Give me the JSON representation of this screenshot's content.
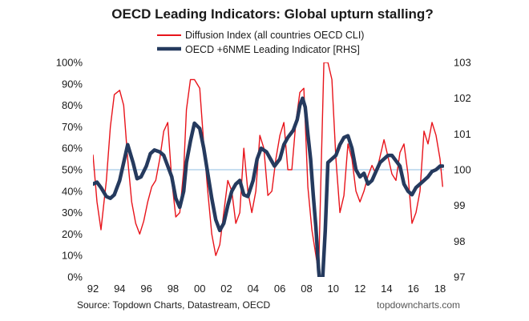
{
  "chart_data": {
    "type": "line",
    "title": "OECD Leading Indicators: Global upturn stalling?",
    "source": "Source: Topdown Charts, Datastream, OECD",
    "brand": "topdowncharts.com",
    "x_tick_labels": [
      "92",
      "94",
      "96",
      "98",
      "00",
      "02",
      "04",
      "06",
      "08",
      "10",
      "12",
      "14",
      "16",
      "18"
    ],
    "x_range": [
      1992,
      2018.3
    ],
    "left_axis": {
      "range": [
        0,
        100
      ],
      "tick_labels": [
        "0%",
        "10%",
        "20%",
        "30%",
        "40%",
        "50%",
        "60%",
        "70%",
        "80%",
        "90%",
        "100%"
      ],
      "tick_values": [
        0,
        10,
        20,
        30,
        40,
        50,
        60,
        70,
        80,
        90,
        100
      ]
    },
    "right_axis": {
      "range": [
        97,
        103
      ],
      "tick_labels": [
        "97",
        "98",
        "99",
        "100",
        "101",
        "102",
        "103"
      ],
      "tick_values": [
        97,
        98,
        99,
        100,
        101,
        102,
        103
      ]
    },
    "reference_line": {
      "axis": "left",
      "value": 50
    },
    "series": [
      {
        "name": "Diffusion Index (all countries OECD CLI)",
        "axis": "left",
        "color": "#e8141b",
        "x": [
          1992.0,
          1992.3,
          1992.6,
          1993.0,
          1993.3,
          1993.6,
          1994.0,
          1994.3,
          1994.6,
          1994.9,
          1995.2,
          1995.5,
          1995.8,
          1996.1,
          1996.4,
          1996.7,
          1997.0,
          1997.3,
          1997.6,
          1997.9,
          1998.2,
          1998.5,
          1998.8,
          1999.0,
          1999.3,
          1999.6,
          2000.0,
          2000.3,
          2000.6,
          2000.9,
          2001.2,
          2001.5,
          2001.8,
          2002.1,
          2002.4,
          2002.7,
          2003.0,
          2003.3,
          2003.6,
          2003.9,
          2004.2,
          2004.5,
          2004.8,
          2005.1,
          2005.4,
          2005.7,
          2006.0,
          2006.3,
          2006.6,
          2006.9,
          2007.2,
          2007.5,
          2007.8,
          2008.1,
          2008.4,
          2008.7,
          2008.9,
          2009.1,
          2009.3,
          2009.6,
          2009.9,
          2010.2,
          2010.5,
          2010.8,
          2011.1,
          2011.4,
          2011.7,
          2012.0,
          2012.3,
          2012.6,
          2012.9,
          2013.2,
          2013.5,
          2013.8,
          2014.1,
          2014.4,
          2014.7,
          2015.0,
          2015.3,
          2015.6,
          2015.9,
          2016.2,
          2016.5,
          2016.8,
          2017.1,
          2017.4,
          2017.7,
          2018.0,
          2018.2
        ],
        "values": [
          57,
          35,
          22,
          45,
          70,
          85,
          87,
          80,
          55,
          35,
          25,
          20,
          26,
          35,
          42,
          45,
          55,
          68,
          72,
          45,
          28,
          30,
          50,
          78,
          92,
          92,
          88,
          62,
          40,
          20,
          10,
          15,
          30,
          45,
          40,
          25,
          30,
          60,
          40,
          30,
          40,
          66,
          60,
          38,
          40,
          55,
          66,
          72,
          50,
          50,
          72,
          86,
          88,
          42,
          22,
          10,
          2,
          52,
          100,
          100,
          92,
          55,
          30,
          38,
          62,
          55,
          40,
          35,
          40,
          47,
          52,
          48,
          56,
          64,
          56,
          48,
          45,
          58,
          62,
          48,
          25,
          30,
          40,
          68,
          62,
          72,
          66,
          55,
          42
        ]
      },
      {
        "name": "OECD +6NME Leading Indicator [RHS]",
        "axis": "right",
        "color": "#253a5e",
        "x": [
          1992.0,
          1992.3,
          1992.6,
          1993.0,
          1993.3,
          1993.6,
          1994.0,
          1994.3,
          1994.6,
          1995.0,
          1995.3,
          1995.6,
          1996.0,
          1996.3,
          1996.6,
          1997.0,
          1997.3,
          1997.6,
          1997.9,
          1998.2,
          1998.5,
          1998.8,
          1999.0,
          1999.3,
          1999.6,
          2000.0,
          2000.3,
          2000.6,
          2000.9,
          2001.2,
          2001.5,
          2001.8,
          2002.1,
          2002.4,
          2002.7,
          2003.0,
          2003.3,
          2003.6,
          2004.0,
          2004.3,
          2004.6,
          2005.0,
          2005.3,
          2005.6,
          2006.0,
          2006.3,
          2006.6,
          2007.0,
          2007.3,
          2007.5,
          2007.7,
          2007.9,
          2008.1,
          2008.3,
          2008.5,
          2008.7,
          2008.9,
          2009.0,
          2009.2,
          2009.4,
          2009.6,
          2009.9,
          2010.2,
          2010.5,
          2010.8,
          2011.1,
          2011.4,
          2011.7,
          2012.0,
          2012.3,
          2012.6,
          2012.9,
          2013.2,
          2013.5,
          2013.8,
          2014.1,
          2014.4,
          2014.7,
          2015.0,
          2015.3,
          2015.6,
          2015.9,
          2016.2,
          2016.5,
          2016.8,
          2017.1,
          2017.4,
          2017.7,
          2018.0,
          2018.2
        ],
        "values": [
          99.6,
          99.65,
          99.5,
          99.25,
          99.2,
          99.3,
          99.7,
          100.2,
          100.7,
          100.2,
          99.75,
          99.8,
          100.1,
          100.45,
          100.55,
          100.5,
          100.4,
          100.1,
          99.8,
          99.2,
          98.95,
          99.4,
          100.2,
          100.8,
          101.3,
          101.15,
          100.6,
          99.9,
          99.2,
          98.6,
          98.3,
          98.5,
          99.0,
          99.4,
          99.6,
          99.7,
          99.3,
          99.25,
          99.7,
          100.3,
          100.6,
          100.5,
          100.3,
          100.1,
          100.3,
          100.7,
          100.9,
          101.1,
          101.4,
          101.8,
          102.0,
          101.75,
          101.0,
          100.3,
          99.3,
          98.4,
          97.2,
          96.8,
          96.9,
          98.3,
          100.2,
          100.3,
          100.4,
          100.7,
          100.9,
          100.95,
          100.6,
          100.0,
          99.8,
          99.9,
          99.6,
          99.7,
          99.95,
          100.2,
          100.3,
          100.4,
          100.4,
          100.25,
          100.1,
          99.6,
          99.4,
          99.3,
          99.5,
          99.6,
          99.7,
          99.8,
          99.95,
          100.0,
          100.1,
          100.1
        ]
      }
    ]
  }
}
